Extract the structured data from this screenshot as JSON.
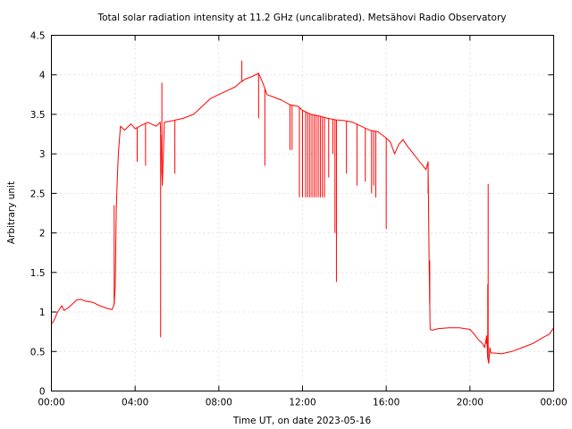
{
  "chart_data": {
    "type": "line",
    "title": "Total solar radiation intensity at 11.2 GHz (uncalibrated). Metsähovi Radio Observatory",
    "xlabel": "Time UT, on date 2023-05-16",
    "ylabel": "Arbitrary unit",
    "xlim": [
      0,
      24
    ],
    "ylim": [
      0,
      4.5
    ],
    "x_ticks": [
      {
        "value": 0,
        "label": "00:00"
      },
      {
        "value": 4,
        "label": "04:00"
      },
      {
        "value": 8,
        "label": "08:00"
      },
      {
        "value": 12,
        "label": "12:00"
      },
      {
        "value": 16,
        "label": "16:00"
      },
      {
        "value": 20,
        "label": "20:00"
      },
      {
        "value": 24,
        "label": "00:00"
      }
    ],
    "y_ticks": [
      {
        "value": 0,
        "label": "0"
      },
      {
        "value": 0.5,
        "label": "0.5"
      },
      {
        "value": 1,
        "label": "1"
      },
      {
        "value": 1.5,
        "label": "1.5"
      },
      {
        "value": 2,
        "label": "2"
      },
      {
        "value": 2.5,
        "label": "2.5"
      },
      {
        "value": 3,
        "label": "3"
      },
      {
        "value": 3.5,
        "label": "3.5"
      },
      {
        "value": 4,
        "label": "4"
      },
      {
        "value": 4.5,
        "label": "4.5"
      }
    ],
    "grid": true,
    "color": "#ff0000",
    "x": [
      0.0,
      0.1,
      0.3,
      0.5,
      0.6,
      0.8,
      1.0,
      1.2,
      1.4,
      1.6,
      2.0,
      2.3,
      2.6,
      2.9,
      3.0,
      3.05,
      3.1,
      3.15,
      3.2,
      3.3,
      3.5,
      3.8,
      4.0,
      4.3,
      4.6,
      5.0,
      5.2,
      5.3,
      5.4,
      5.8,
      6.3,
      6.8,
      7.2,
      7.6,
      8.0,
      8.4,
      8.8,
      9.0,
      9.3,
      9.6,
      9.9,
      10.1,
      10.3,
      10.6,
      11.0,
      11.4,
      11.8,
      12.0,
      12.4,
      12.8,
      13.2,
      13.6,
      14.0,
      14.4,
      14.8,
      15.2,
      15.6,
      16.0,
      16.2,
      16.4,
      16.6,
      16.8,
      17.0,
      17.3,
      17.6,
      17.9,
      18.0,
      18.05,
      18.1,
      18.2,
      18.5,
      19.0,
      19.5,
      20.0,
      20.2,
      20.4,
      20.6,
      20.7,
      20.8,
      20.85,
      20.9,
      20.95,
      21.0,
      21.2,
      21.5,
      22.0,
      22.5,
      23.0,
      23.5,
      23.8,
      24.0
    ],
    "y": [
      0.85,
      0.88,
      1.0,
      1.08,
      1.02,
      1.05,
      1.1,
      1.15,
      1.16,
      1.14,
      1.12,
      1.08,
      1.05,
      1.03,
      1.1,
      1.3,
      2.3,
      2.7,
      3.0,
      3.35,
      3.3,
      3.38,
      3.32,
      3.36,
      3.4,
      3.35,
      3.4,
      2.6,
      3.4,
      3.42,
      3.45,
      3.5,
      3.6,
      3.7,
      3.75,
      3.8,
      3.85,
      3.9,
      3.95,
      3.98,
      4.02,
      3.9,
      3.75,
      3.72,
      3.68,
      3.62,
      3.6,
      3.55,
      3.5,
      3.48,
      3.45,
      3.43,
      3.42,
      3.4,
      3.35,
      3.3,
      3.28,
      3.2,
      3.15,
      3.0,
      3.12,
      3.18,
      3.1,
      3.0,
      2.9,
      2.8,
      2.9,
      1.6,
      0.78,
      0.77,
      0.79,
      0.8,
      0.8,
      0.78,
      0.72,
      0.65,
      0.6,
      0.55,
      0.7,
      0.42,
      0.35,
      0.55,
      0.48,
      0.48,
      0.47,
      0.5,
      0.55,
      0.6,
      0.68,
      0.72,
      0.8
    ],
    "spikes": [
      {
        "x": 3.0,
        "y": 2.35
      },
      {
        "x": 5.22,
        "y": 0.68
      },
      {
        "x": 5.28,
        "y": 3.9
      },
      {
        "x": 4.1,
        "y": 2.9
      },
      {
        "x": 4.5,
        "y": 2.85
      },
      {
        "x": 5.9,
        "y": 2.75
      },
      {
        "x": 9.1,
        "y": 4.18
      },
      {
        "x": 9.9,
        "y": 3.45
      },
      {
        "x": 10.2,
        "y": 2.85
      },
      {
        "x": 11.4,
        "y": 3.05
      },
      {
        "x": 11.5,
        "y": 3.05
      },
      {
        "x": 11.85,
        "y": 2.45
      },
      {
        "x": 12.0,
        "y": 2.45
      },
      {
        "x": 12.15,
        "y": 2.45
      },
      {
        "x": 12.25,
        "y": 2.45
      },
      {
        "x": 12.35,
        "y": 2.45
      },
      {
        "x": 12.45,
        "y": 2.45
      },
      {
        "x": 12.55,
        "y": 2.45
      },
      {
        "x": 12.65,
        "y": 2.45
      },
      {
        "x": 12.75,
        "y": 2.45
      },
      {
        "x": 12.85,
        "y": 2.45
      },
      {
        "x": 12.95,
        "y": 2.45
      },
      {
        "x": 13.05,
        "y": 2.45
      },
      {
        "x": 13.25,
        "y": 2.7
      },
      {
        "x": 13.45,
        "y": 3.0
      },
      {
        "x": 13.55,
        "y": 2.0
      },
      {
        "x": 13.62,
        "y": 1.38
      },
      {
        "x": 14.1,
        "y": 2.75
      },
      {
        "x": 14.6,
        "y": 2.6
      },
      {
        "x": 15.0,
        "y": 2.65
      },
      {
        "x": 15.3,
        "y": 2.5
      },
      {
        "x": 15.4,
        "y": 2.6
      },
      {
        "x": 15.5,
        "y": 2.45
      },
      {
        "x": 16.0,
        "y": 2.05
      },
      {
        "x": 18.0,
        "y": 2.5
      },
      {
        "x": 18.02,
        "y": 2.4
      },
      {
        "x": 18.08,
        "y": 1.65
      },
      {
        "x": 20.78,
        "y": 0.6
      },
      {
        "x": 20.87,
        "y": 2.62
      },
      {
        "x": 20.85,
        "y": 1.35
      }
    ]
  }
}
